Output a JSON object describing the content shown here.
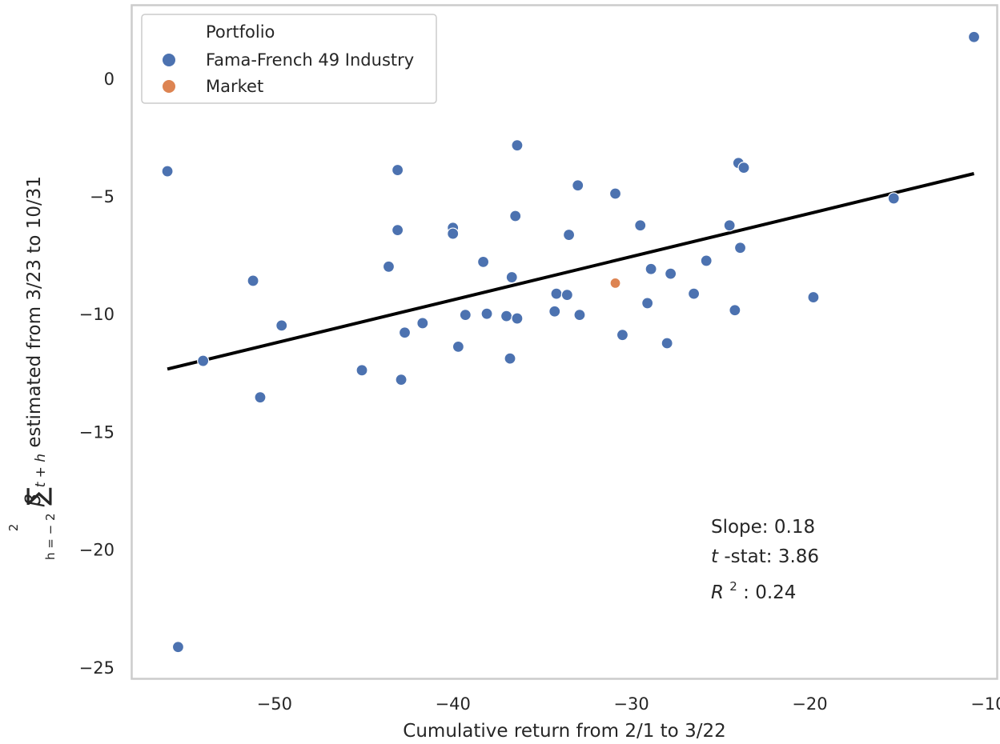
{
  "chart_data": {
    "type": "scatter",
    "xlabel": "Cumulative return from 2/1 to 3/22",
    "ylabel": {
      "sum_upper": "2",
      "sum_lower": "h = − 2",
      "beta": "β",
      "beta_sub": "t + h",
      "rest": " estimated from 3/23 to 10/31"
    },
    "xlim": [
      -58,
      -9.5
    ],
    "ylim": [
      -25.5,
      3.1
    ],
    "x_ticks": [
      -50,
      -40,
      -30,
      -20,
      -10
    ],
    "y_ticks": [
      0,
      -5,
      -10,
      -15,
      -20,
      -25
    ],
    "x_tick_labels": [
      "−50",
      "−40",
      "−30",
      "−20",
      "−10"
    ],
    "y_tick_labels": [
      "0",
      "−5",
      "−10",
      "−15",
      "−20",
      "−25"
    ],
    "grid": false,
    "legend": {
      "title": "Portfolio",
      "placement": "top-left",
      "entries": [
        "Fama-French 49 Industry",
        "Market"
      ]
    },
    "colors": {
      "industry": "#4c72b0",
      "market": "#dd8452",
      "fit_line": "#000000",
      "frame": "#cccccc"
    },
    "series": [
      {
        "name": "Fama-French 49 Industry",
        "points": [
          [
            -56.0,
            -3.95
          ],
          [
            -55.4,
            -24.15
          ],
          [
            -54.0,
            -12.0
          ],
          [
            -51.2,
            -8.6
          ],
          [
            -50.8,
            -13.55
          ],
          [
            -49.6,
            -10.5
          ],
          [
            -45.1,
            -12.4
          ],
          [
            -43.6,
            -8.0
          ],
          [
            -43.1,
            -3.9
          ],
          [
            -43.1,
            -6.45
          ],
          [
            -42.9,
            -12.8
          ],
          [
            -42.7,
            -10.8
          ],
          [
            -41.7,
            -10.4
          ],
          [
            -40.0,
            -6.35
          ],
          [
            -40.0,
            -6.6
          ],
          [
            -39.7,
            -11.4
          ],
          [
            -39.3,
            -10.05
          ],
          [
            -38.3,
            -7.8
          ],
          [
            -38.1,
            -10.0
          ],
          [
            -37.0,
            -10.1
          ],
          [
            -36.8,
            -11.9
          ],
          [
            -36.7,
            -8.45
          ],
          [
            -36.5,
            -5.85
          ],
          [
            -36.4,
            -2.85
          ],
          [
            -36.4,
            -10.2
          ],
          [
            -34.3,
            -9.9
          ],
          [
            -34.2,
            -9.15
          ],
          [
            -33.6,
            -9.2
          ],
          [
            -33.5,
            -6.65
          ],
          [
            -33.0,
            -4.55
          ],
          [
            -32.9,
            -10.05
          ],
          [
            -30.9,
            -4.9
          ],
          [
            -30.5,
            -10.9
          ],
          [
            -29.5,
            -6.25
          ],
          [
            -29.1,
            -9.55
          ],
          [
            -28.9,
            -8.1
          ],
          [
            -28.0,
            -11.25
          ],
          [
            -27.8,
            -8.3
          ],
          [
            -26.5,
            -9.15
          ],
          [
            -25.8,
            -7.75
          ],
          [
            -24.5,
            -6.25
          ],
          [
            -24.2,
            -9.85
          ],
          [
            -24.0,
            -3.6
          ],
          [
            -23.9,
            -7.2
          ],
          [
            -23.7,
            -3.8
          ],
          [
            -19.8,
            -9.3
          ],
          [
            -15.3,
            -5.1
          ],
          [
            -10.8,
            1.75
          ]
        ]
      },
      {
        "name": "Market",
        "points": [
          [
            -30.9,
            -8.7
          ]
        ]
      }
    ],
    "fit_line": {
      "slope": 0.18,
      "x_range": [
        -56.0,
        -10.8
      ],
      "y_range": [
        -12.35,
        -4.05
      ]
    },
    "annotations": {
      "slope_label": "Slope: 0.18",
      "tstat_italic": "t",
      "tstat_rest": "-stat: 3.86",
      "r2_italic": "R",
      "r2_sup": "2",
      "r2_rest": ": 0.24"
    }
  }
}
